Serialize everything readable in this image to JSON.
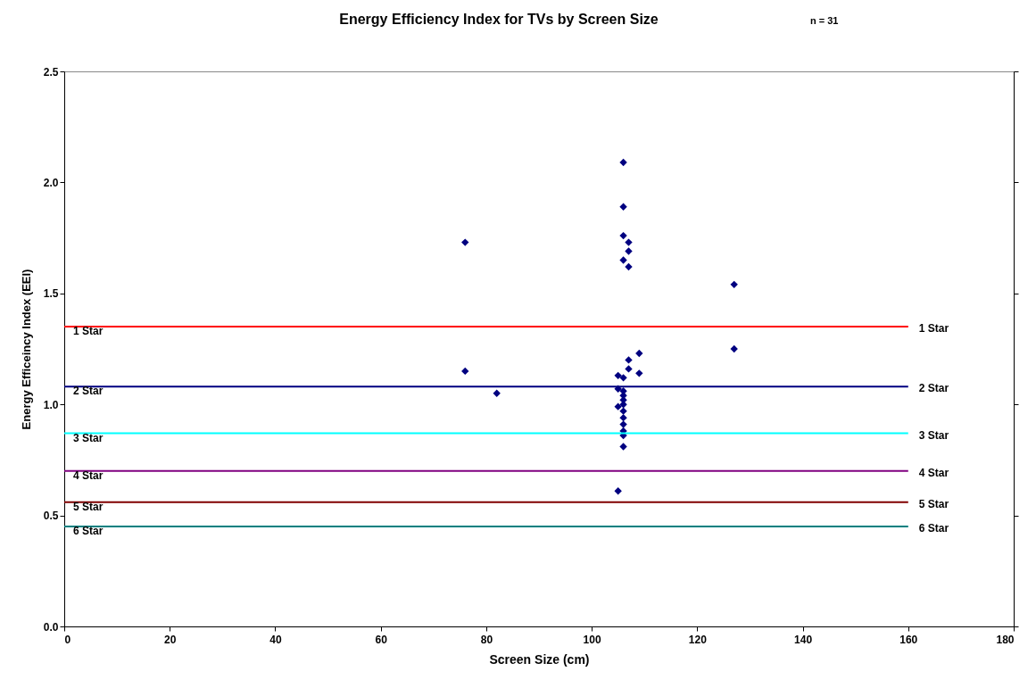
{
  "chart_data": {
    "type": "scatter",
    "title": "Energy Efficiency Index for TVs by Screen Size",
    "annotations": [
      "n = 31"
    ],
    "xlabel": "Screen Size (cm)",
    "ylabel": "Energy Efficeincy Index (EEI)",
    "xlim": [
      0,
      180
    ],
    "xticks": [
      0,
      20,
      40,
      60,
      80,
      100,
      120,
      140,
      160,
      180
    ],
    "ylim": [
      0,
      2.5
    ],
    "yticks": [
      {
        "value": 0,
        "label": "0.0"
      },
      {
        "value": 0.5,
        "label": "0.5"
      },
      {
        "value": 1,
        "label": "1.0"
      },
      {
        "value": 1.5,
        "label": "1.5"
      },
      {
        "value": 2,
        "label": "2.0"
      },
      {
        "value": 2.5,
        "label": "2.5"
      }
    ],
    "grid": false,
    "series": [
      {
        "marker": "diamond",
        "color": "#000080",
        "x": [
          76,
          76,
          82,
          106,
          106,
          106,
          107,
          107,
          106,
          107,
          127,
          127,
          109,
          107,
          107,
          109,
          105,
          106,
          105,
          106,
          105,
          106,
          106,
          106,
          106,
          106,
          106,
          106,
          105,
          106,
          106
        ],
        "values": [
          1.73,
          1.15,
          1.05,
          2.09,
          1.89,
          1.76,
          1.73,
          1.69,
          1.65,
          1.62,
          1.54,
          1.25,
          1.23,
          1.2,
          1.16,
          1.14,
          1.13,
          1.12,
          1.07,
          1.04,
          0.99,
          1.0,
          0.97,
          0.94,
          0.91,
          0.88,
          0.86,
          0.81,
          0.61,
          1.02,
          1.06
        ]
      },
      {
        "type": "line",
        "name": "1 Star",
        "color": "#ff0000",
        "x": [
          0,
          160
        ],
        "values": [
          1.35,
          1.35
        ]
      },
      {
        "type": "line",
        "name": "2 Star",
        "color": "#000080",
        "x": [
          0,
          160
        ],
        "values": [
          1.08,
          1.08
        ]
      },
      {
        "type": "line",
        "name": "3 Star",
        "color": "#00ffff",
        "x": [
          0,
          160
        ],
        "values": [
          0.87,
          0.87
        ]
      },
      {
        "type": "line",
        "name": "4 Star",
        "color": "#800080",
        "x": [
          0,
          160
        ],
        "values": [
          0.7,
          0.7
        ]
      },
      {
        "type": "line",
        "name": "5 Star",
        "color": "#800000",
        "x": [
          0,
          160
        ],
        "values": [
          0.56,
          0.56
        ]
      },
      {
        "type": "line",
        "name": "6 Star",
        "color": "#008080",
        "x": [
          0,
          160
        ],
        "values": [
          0.45,
          0.45
        ]
      }
    ]
  }
}
